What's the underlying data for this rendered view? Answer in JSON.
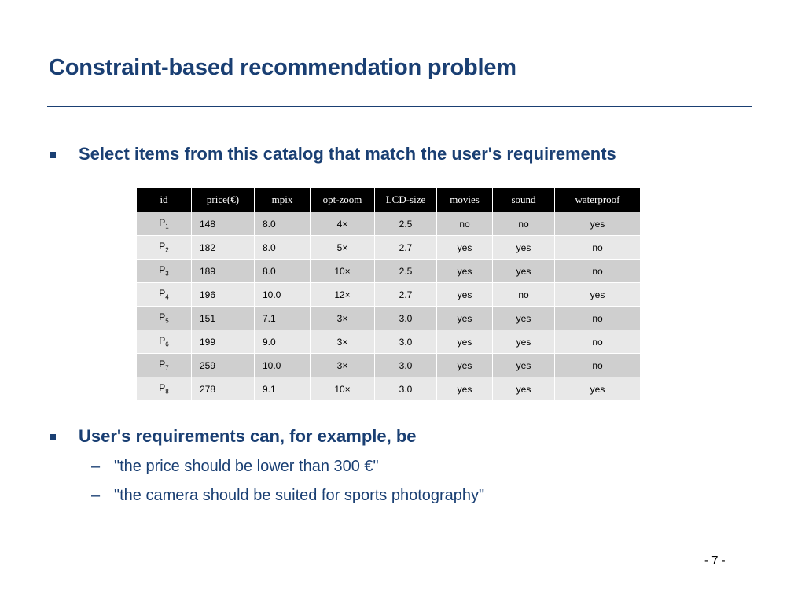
{
  "slide": {
    "title": "Constraint-based recommendation problem",
    "page_number": "- 7 -"
  },
  "bullets": [
    {
      "text": "Select items from this catalog that match the user's requirements"
    },
    {
      "text": "User's requirements can, for example, be",
      "subitems": [
        {
          "dash": "–",
          "text": "\"the price should be lower than 300 €\""
        },
        {
          "dash": "–",
          "text": "\"the camera should be suited for sports photography\""
        }
      ]
    }
  ],
  "catalog": {
    "headers": [
      "id",
      "price(€)",
      "mpix",
      "opt-zoom",
      "LCD-size",
      "movies",
      "sound",
      "waterproof"
    ],
    "rows": [
      {
        "id": "P",
        "sub": "1",
        "price": "148",
        "mpix": "8.0",
        "zoom": "4×",
        "lcd": "2.5",
        "movies": "no",
        "sound": "no",
        "waterproof": "yes"
      },
      {
        "id": "P",
        "sub": "2",
        "price": "182",
        "mpix": "8.0",
        "zoom": "5×",
        "lcd": "2.7",
        "movies": "yes",
        "sound": "yes",
        "waterproof": "no"
      },
      {
        "id": "P",
        "sub": "3",
        "price": "189",
        "mpix": "8.0",
        "zoom": "10×",
        "lcd": "2.5",
        "movies": "yes",
        "sound": "yes",
        "waterproof": "no"
      },
      {
        "id": "P",
        "sub": "4",
        "price": "196",
        "mpix": "10.0",
        "zoom": "12×",
        "lcd": "2.7",
        "movies": "yes",
        "sound": "no",
        "waterproof": "yes"
      },
      {
        "id": "P",
        "sub": "5",
        "price": "151",
        "mpix": "7.1",
        "zoom": "3×",
        "lcd": "3.0",
        "movies": "yes",
        "sound": "yes",
        "waterproof": "no"
      },
      {
        "id": "P",
        "sub": "6",
        "price": "199",
        "mpix": "9.0",
        "zoom": "3×",
        "lcd": "3.0",
        "movies": "yes",
        "sound": "yes",
        "waterproof": "no"
      },
      {
        "id": "P",
        "sub": "7",
        "price": "259",
        "mpix": "10.0",
        "zoom": "3×",
        "lcd": "3.0",
        "movies": "yes",
        "sound": "yes",
        "waterproof": "no"
      },
      {
        "id": "P",
        "sub": "8",
        "price": "278",
        "mpix": "9.1",
        "zoom": "10×",
        "lcd": "3.0",
        "movies": "yes",
        "sound": "yes",
        "waterproof": "yes"
      }
    ]
  },
  "colors": {
    "heading": "#1a3f73",
    "table_header_bg": "#000000",
    "row_dark": "#cfcfcf",
    "row_light": "#e8e8e8"
  }
}
